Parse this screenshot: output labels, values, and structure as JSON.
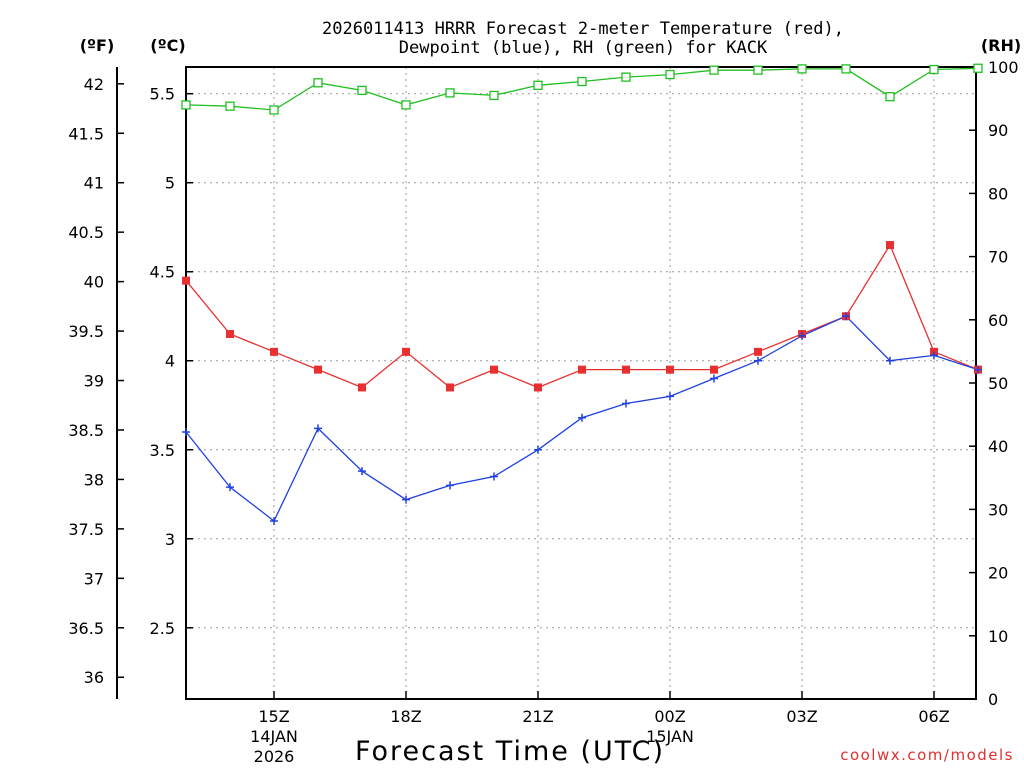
{
  "chart_data": {
    "type": "line",
    "title": [
      "2026011413 HRRR Forecast 2-meter Temperature (red),",
      "Dewpoint (blue), RH (green) for KACK"
    ],
    "xlabel": "Forecast Time (UTC)",
    "unit_labels": {
      "fahrenheit": "(ºF)",
      "celsius": "(ºC)",
      "rh": "(RH)"
    },
    "x_hours": [
      13,
      14,
      15,
      16,
      17,
      18,
      19,
      20,
      21,
      22,
      23,
      24,
      25,
      26,
      27,
      28,
      29,
      30,
      31
    ],
    "x_ticks": [
      {
        "hour": 15,
        "label": "15Z",
        "sub": [
          "14JAN",
          "2026"
        ]
      },
      {
        "hour": 18,
        "label": "18Z",
        "sub": []
      },
      {
        "hour": 21,
        "label": "21Z",
        "sub": []
      },
      {
        "hour": 24,
        "label": "00Z",
        "sub": [
          "15JAN"
        ]
      },
      {
        "hour": 27,
        "label": "03Z",
        "sub": []
      },
      {
        "hour": 30,
        "label": "06Z",
        "sub": []
      }
    ],
    "celsius_axis": {
      "min": 2.1,
      "max": 5.65,
      "ticks": [
        "2.5",
        "3",
        "3.5",
        "4",
        "4.5",
        "5",
        "5.5"
      ]
    },
    "fahrenheit_ticks": [
      "36",
      "36.5",
      "37",
      "37.5",
      "38",
      "38.5",
      "39",
      "39.5",
      "40",
      "40.5",
      "41",
      "41.5",
      "42"
    ],
    "rh_axis": {
      "min": 0,
      "max": 100,
      "ticks": [
        "0",
        "10",
        "20",
        "30",
        "40",
        "50",
        "60",
        "70",
        "80",
        "90",
        "100"
      ]
    },
    "series": [
      {
        "name": "Temperature",
        "axis": "celsius",
        "color": "#e83030",
        "marker": "square-filled",
        "values": [
          4.45,
          4.15,
          4.05,
          3.95,
          3.85,
          4.05,
          3.85,
          3.95,
          3.85,
          3.95,
          3.95,
          3.95,
          3.95,
          4.05,
          4.15,
          4.25,
          4.65,
          4.05,
          3.95
        ]
      },
      {
        "name": "Dewpoint",
        "axis": "celsius",
        "color": "#2040e0",
        "marker": "plus",
        "values": [
          3.6,
          3.29,
          3.1,
          3.62,
          3.38,
          3.22,
          3.3,
          3.35,
          3.5,
          3.68,
          3.76,
          3.8,
          3.9,
          4.0,
          4.14,
          4.25,
          4.0,
          4.03,
          3.95
        ]
      },
      {
        "name": "RH",
        "axis": "rh",
        "color": "#20c020",
        "marker": "square-open",
        "values": [
          94.0,
          93.8,
          93.2,
          97.5,
          96.3,
          94.0,
          95.9,
          95.5,
          97.1,
          97.7,
          98.4,
          98.8,
          99.5,
          99.5,
          99.7,
          99.7,
          95.3,
          99.6,
          99.8
        ]
      }
    ],
    "grid": true,
    "legend": "none (series named in title)"
  },
  "credit": "coolwx.com/models"
}
